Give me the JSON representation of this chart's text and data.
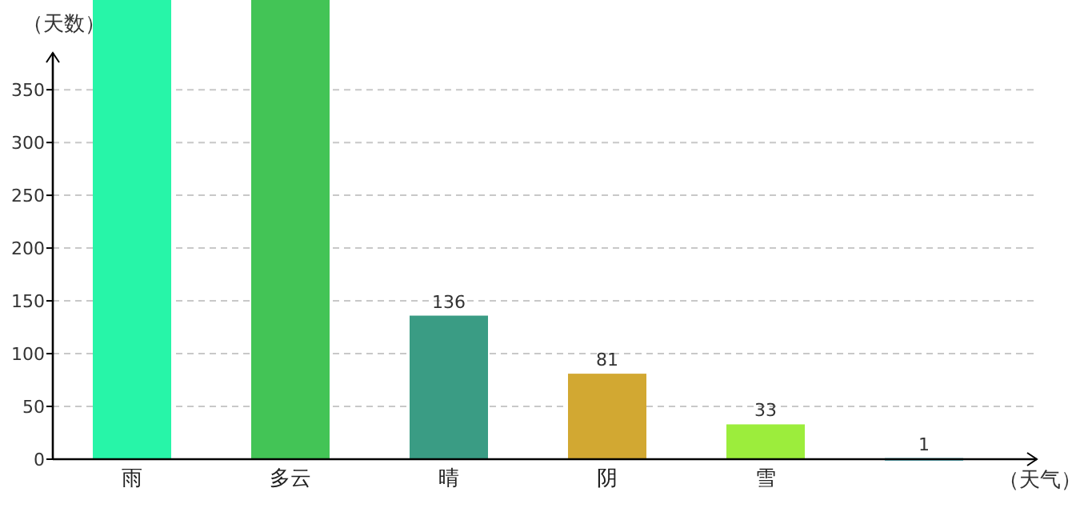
{
  "chart_data": {
    "type": "bar",
    "xlabel": "（天气）",
    "ylabel": "（天数）",
    "categories": [
      "雨",
      "多云",
      "晴",
      "阴",
      "雪",
      null
    ],
    "values": [
      435,
      435,
      136,
      81,
      33,
      1
    ],
    "colors": [
      "#27f5a8",
      "#43c456",
      "#3a9c84",
      "#d2a832",
      "#9ced3c",
      "#2a9fb0"
    ],
    "value_labels": [
      null,
      null,
      "136",
      "81",
      "33",
      "1"
    ],
    "ylim": [
      0,
      435
    ],
    "yticks": [
      0,
      50,
      100,
      150,
      200,
      250,
      300,
      350
    ],
    "grid": "y"
  }
}
